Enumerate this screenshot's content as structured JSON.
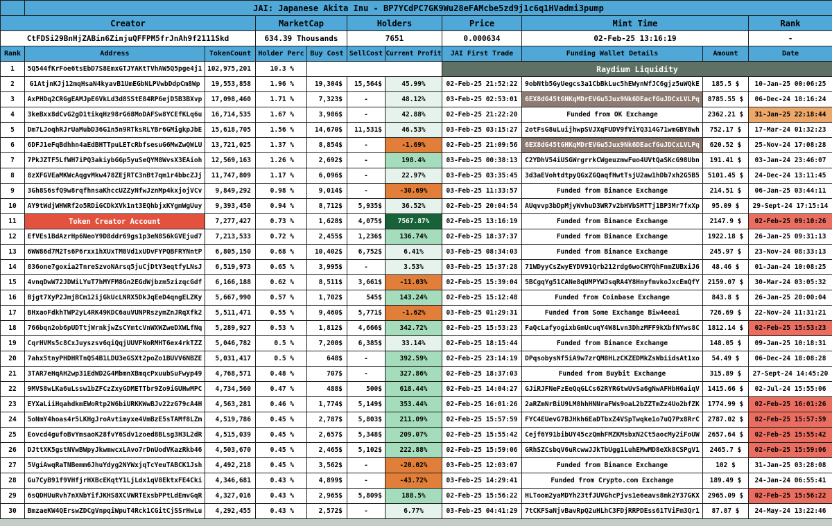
{
  "title": "JAI: Japanese Akita Inu - BP7YCdPC7GK9Wu28eFAMcbe5zd9j1c6q1HVadmi3pump",
  "summary": {
    "headers": [
      "Creator",
      "MarketCap",
      "Holders",
      "Price",
      "Mint Time",
      "Rank"
    ],
    "values": [
      "CtFDSi29BnHjZABin6ZinjuQFFPM5frJnAh9f2111Skd",
      "634.39 Thousands",
      "7651",
      "0.000634",
      "02-Feb-25 13:16:19",
      "-"
    ]
  },
  "columns": [
    "Rank",
    "Address",
    "TokenCount",
    "Holder Perc",
    "Buy Cost",
    "SellCost",
    "Current Profit",
    "JAI First Trade",
    "Funding Wallet Details",
    "Amount",
    "Date"
  ],
  "colors": {
    "header_blue": "#4FA8D7",
    "raydium_dark_cell": "#5F7065",
    "creator_red_cell": "#E2523F",
    "funding_wallet_brown": "#8D7B72",
    "profit_negative_orange": "#E07E3A",
    "profit_light_green": "#E6F3EC",
    "profit_mid_green": "#A5DCBB",
    "profit_dark_green": "#176239",
    "date_red": "#EA6E60",
    "date_orange": "#ECA76A"
  },
  "rows": [
    {
      "rank": "1",
      "address": "5Q544fKrFoe6tsEbD7S8EmxGTJYAKtTVhAW5Q5pge4j1",
      "tokens": "102,975,201",
      "perc": "10.3 %",
      "raydium": true,
      "funding": "Raydium Liquidity"
    },
    {
      "rank": "2",
      "address": "G1AtjnKJj12mqHsaN4kyavB1UmEGbNLPVwbDdpCm8Wp",
      "tokens": "19,553,858",
      "perc": "1.96 %",
      "buy": "19,304$",
      "sell": "15,564$",
      "profit": "45.99%",
      "trade": "02-Feb-25 21:52:22",
      "funding": "9obNtb5GyUegcs3a1CbBkLuc5hEWynWfJC6gjz5uWQkE",
      "amount": "185.5 $",
      "date": "10-Jan-25 00:06:25"
    },
    {
      "rank": "3",
      "address": "AxPHDq2CRGgEAMJpE6VkLd3d8SStE84RP6ejD5B3BXvp",
      "tokens": "17,098,460",
      "perc": "1.71 %",
      "buy": "7,323$",
      "sell": "-",
      "profit": "48.12%",
      "trade": "03-Feb-25 02:53:01",
      "funding": "6EX8dG45tGHKqMDrEVGu5Jux9Nk6DEacfGuJDCxLVLPq",
      "funding_dark": true,
      "amount": "8785.55 $",
      "date": "06-Dec-24 18:16:24"
    },
    {
      "rank": "4",
      "address": "3keBxx8dCvG2gD1tikqHz98rG68MoDAFSw8YCEfKLq6u",
      "tokens": "16,714,535",
      "perc": "1.67 %",
      "buy": "3,986$",
      "sell": "-",
      "profit": "42.88%",
      "trade": "02-Feb-25 21:22:20",
      "funding": "Funded from OK Exchange",
      "amount": "2362.21 $",
      "date": "31-Jan-25 22:18:44",
      "date_flag": "orange"
    },
    {
      "rank": "5",
      "address": "Dm7LJoqhRJrUaMubD36G1n5n9RTksRLYBr6GMigkpJbE",
      "tokens": "15,618,705",
      "perc": "1.56 %",
      "buy": "14,670$",
      "sell": "11,531$",
      "profit": "46.53%",
      "trade": "03-Feb-25 03:15:27",
      "funding": "2otFsG8uLuijhwpSVJXqFUDV9fViYQ314G71wmGBY8wh",
      "amount": "752.17 $",
      "date": "17-Mar-24 01:32:23"
    },
    {
      "rank": "6",
      "address": "6DFJ1eFqBdhhn4aEdBHTTpuLETcRbfsesuG6MwZwQWLU",
      "tokens": "13,721,025",
      "perc": "1.37 %",
      "buy": "8,854$",
      "sell": "-",
      "profit": "-1.69%",
      "trade": "02-Feb-25 21:09:56",
      "funding": "6EX8dG45tGHKqMDrEVGu5Jux9Nk6DEacfGuJDCxLVLPq",
      "funding_dark": true,
      "amount": "620.52 $",
      "date": "25-Nov-24 17:08:28"
    },
    {
      "rank": "7",
      "address": "7PkJZTF5LfWH7iPQ3akiybGGp5yuSeQYM8WvsX3EAioh",
      "tokens": "12,569,163",
      "perc": "1.26 %",
      "buy": "2,692$",
      "sell": "-",
      "profit": "198.4%",
      "trade": "03-Feb-25 00:38:13",
      "funding": "C2YDhV54iUSGWrgrrkCWgeuzmwFuo4UVtQaSKcG98Ubn",
      "amount": "191.41 $",
      "date": "03-Jan-24 23:46:07"
    },
    {
      "rank": "8",
      "address": "8zXFGVEaMKWcAqgvMkw478ZEjRTC3nBt7qm1r4bbcZJj",
      "tokens": "11,747,809",
      "perc": "1.17 %",
      "buy": "6,096$",
      "sell": "-",
      "profit": "22.97%",
      "trade": "03-Feb-25 03:35:45",
      "funding": "3d3aEVohtdtpyQGxZGQaqfHwtTsjU2aw1hDb7xh2G5B5",
      "amount": "5101.45 $",
      "date": "24-Dec-24 13:11:45"
    },
    {
      "rank": "9",
      "address": "3Gh8S6sfQ9w8rqfhnsaKhccUZZyNfwJznMp4kxjojVCv",
      "tokens": "9,849,292",
      "perc": "0.98 %",
      "buy": "9,014$",
      "sell": "-",
      "profit": "-30.69%",
      "trade": "03-Feb-25 11:33:57",
      "funding": "Funded from Binance Exchange",
      "amount": "214.51 $",
      "date": "06-Jan-25 03:44:11"
    },
    {
      "rank": "10",
      "address": "AY9tWdjWHWRf2o5RDiGCDkXVk1nt3EQhbjxKYgmWgUuy",
      "tokens": "9,393,450",
      "perc": "0.94 %",
      "buy": "8,712$",
      "sell": "5,935$",
      "profit": "36.52%",
      "trade": "02-Feb-25 20:04:54",
      "funding": "AUqvvp3bDpMjyWvhuD3WR7v2bHVbSMTTj1BP3Mr7fxXp",
      "amount": "95.09 $",
      "date": "29-Sept-24 17:15:14"
    },
    {
      "rank": "11",
      "address": "Token Creator Account",
      "creator": true,
      "tokens": "7,277,427",
      "perc": "0.73 %",
      "buy": "1,628$",
      "sell": "4,075$",
      "profit": "7567.87%",
      "trade": "02-Feb-25 13:16:19",
      "funding": "Funded from Binance Exchange",
      "amount": "2147.9 $",
      "date": "02-Feb-25 09:10:26",
      "date_flag": "red"
    },
    {
      "rank": "12",
      "address": "EfVEs1BdAzrHp6NeoY9D8ddr69gs1p3eN8S6kGVEjud7",
      "tokens": "7,213,533",
      "perc": "0.72 %",
      "buy": "2,455$",
      "sell": "1,236$",
      "profit": "136.74%",
      "trade": "02-Feb-25 18:37:37",
      "funding": "Funded from Binance Exchange",
      "amount": "1922.18 $",
      "date": "26-Jan-25 09:31:13"
    },
    {
      "rank": "13",
      "address": "6WW86d7M2Ts6P6rxx1hXUxTM8Vd1xUDvFYPQBFRYNntP",
      "tokens": "6,805,150",
      "perc": "0.68 %",
      "buy": "10,402$",
      "sell": "6,752$",
      "profit": "6.41%",
      "trade": "03-Feb-25 08:34:03",
      "funding": "Funded from Binance Exchange",
      "amount": "245.97 $",
      "date": "23-Nov-24 08:33:13"
    },
    {
      "rank": "14",
      "address": "836one7goxia2TnreSzvoNArsq5juCjDtY3eqtfyLNsJ",
      "tokens": "6,519,973",
      "perc": "0.65 %",
      "buy": "3,995$",
      "sell": "-",
      "profit": "3.53%",
      "trade": "03-Feb-25 15:37:28",
      "funding": "71WDyyCsZwyEYDV91Qrb212rdg6woCHYQhFnmZUBxiJ6",
      "amount": "48.46 $",
      "date": "01-Jan-24 10:08:25"
    },
    {
      "rank": "15",
      "address": "4vnqDwW72JDWiLYuT7hMYFM8Gn2EGdWjbzm5zizqcGdf",
      "tokens": "6,166,188",
      "perc": "0.62 %",
      "buy": "8,511$",
      "sell": "3,661$",
      "profit": "-11.03%",
      "trade": "02-Feb-25 15:39:04",
      "funding": "5BCgqYg51CANe8qUMPYWJsqRA4Y8HnyfmvkoJxcEmQfY",
      "amount": "2159.07 $",
      "date": "30-Mar-24 03:05:32"
    },
    {
      "rank": "16",
      "address": "Bjgt7XyP2JmjBCm12ijGkUcLNRX5DkJqEeD4qngELZKy",
      "tokens": "5,667,990",
      "perc": "0.57 %",
      "buy": "1,702$",
      "sell": "545$",
      "profit": "143.24%",
      "trade": "02-Feb-25 15:12:48",
      "funding": "Funded from Coinbase Exchange",
      "amount": "843.8 $",
      "date": "26-Jan-25 20:00:04"
    },
    {
      "rank": "17",
      "address": "BHxaoFdkhTWP2yL4RK49KDC6auVUNPRszymZnJRqXfk2",
      "tokens": "5,511,471",
      "perc": "0.55 %",
      "buy": "9,460$",
      "sell": "5,771$",
      "profit": "-1.62%",
      "trade": "03-Feb-25 01:29:31",
      "funding": "Funded from Some Exchange Biw4eeai",
      "amount": "726.69 $",
      "date": "22-Nov-24 11:31:21"
    },
    {
      "rank": "18",
      "address": "766bqn2ob6pUDTtjWrnkjwZsCYmtcVnWXWZweDXWLfNq",
      "tokens": "5,289,927",
      "perc": "0.53 %",
      "buy": "1,812$",
      "sell": "4,666$",
      "profit": "342.72%",
      "trade": "02-Feb-25 15:53:23",
      "funding": "FaQcLafyogixbGmUcuqY4W8Lvn3DhzMFF9kXbfNYws8C",
      "amount": "1812.14 $",
      "date": "02-Feb-25 15:53:23",
      "date_flag": "red"
    },
    {
      "rank": "19",
      "address": "CqrHVMs5c8CxJuyszsv6qiQqjUUVFNoRMHT6ex4rkTZZ",
      "tokens": "5,046,782",
      "perc": "0.5 %",
      "buy": "7,200$",
      "sell": "6,385$",
      "profit": "33.14%",
      "trade": "02-Feb-25 18:15:44",
      "funding": "Funded from Binance Exchange",
      "amount": "148.05 $",
      "date": "09-Jan-25 10:18:31"
    },
    {
      "rank": "20",
      "address": "7ahx5tnyPHDHRTnQS4B1LDU3eGSXt2poZo1BUVV6NBZE",
      "tokens": "5,031,417",
      "perc": "0.5 %",
      "buy": "648$",
      "sell": "-",
      "profit": "392.59%",
      "trade": "02-Feb-25 23:14:19",
      "funding": "DPqsobysNf5iA9w7zrQM8HLzCKZEDMkZsWbiidsAt1xo",
      "amount": "54.49 $",
      "date": "06-Dec-24 18:08:28"
    },
    {
      "rank": "21",
      "address": "3TAR7eHqAH2wp31EdWD2G4MbmnXBmqcPxuubSuFwyp49",
      "tokens": "4,768,571",
      "perc": "0.48 %",
      "buy": "707$",
      "sell": "-",
      "profit": "327.86%",
      "trade": "02-Feb-25 18:37:03",
      "funding": "Funded from Buybit Exchange",
      "amount": "315.89 $",
      "date": "27-Sept-24 14:45:20"
    },
    {
      "rank": "22",
      "address": "9MVS8wLKa6uLssw1bZFCzZxyGDMETTbr9Zo9iGUHwMPC",
      "tokens": "4,734,560",
      "perc": "0.47 %",
      "buy": "488$",
      "sell": "500$",
      "profit": "618.44%",
      "trade": "02-Feb-25 14:04:27",
      "funding": "GJiRJFNeFzEeQqGLCs62RYRGtwUvSa6gNwAFHbH6aiqV",
      "amount": "1415.66 $",
      "date": "02-Jul-24 15:55:06"
    },
    {
      "rank": "23",
      "address": "EYXaLiiHqahdkmEWoRtp2W6biURKKWwBJv22zG79cA4H",
      "tokens": "4,563,281",
      "perc": "0.46 %",
      "buy": "1,774$",
      "sell": "5,149$",
      "profit": "353.44%",
      "trade": "02-Feb-25 16:01:26",
      "funding": "2aRZmNrBiU9LM8hhHNNraFWs9oaL2bZZTmZz4Uo2bfZK",
      "amount": "1774.99 $",
      "date": "02-Feb-25 16:01:26",
      "date_flag": "red"
    },
    {
      "rank": "24",
      "address": "5oNmY4hoas4r5LKHgJroAvtimyxe4VmBzE5sTAMf8LZm",
      "tokens": "4,519,786",
      "perc": "0.45 %",
      "buy": "2,787$",
      "sell": "5,803$",
      "profit": "211.09%",
      "trade": "02-Feb-25 15:57:59",
      "funding": "FYC4EUevG7BJHkh6EaDTbxZ4VSpTwqke1o7uQ7Px8RrC",
      "amount": "2787.02 $",
      "date": "02-Feb-25 15:57:59",
      "date_flag": "red"
    },
    {
      "rank": "25",
      "address": "Eovcd4gufoBvYmsaoK28fvY6Sdv1zoed8BLsg3H3L2dR",
      "tokens": "4,515,039",
      "perc": "0.45 %",
      "buy": "2,657$",
      "sell": "5,348$",
      "profit": "209.07%",
      "trade": "02-Feb-25 15:55:42",
      "funding": "Cejf6Y91bibUY45czQmhFMZKMsbxN2Ct5aocMy2iFoUW",
      "amount": "2657.64 $",
      "date": "02-Feb-25 15:55:42",
      "date_flag": "red"
    },
    {
      "rank": "26",
      "address": "DJttXK5gstNVwBWpyJkwmwcxLAvo7rDnUodVKazRkb46",
      "tokens": "4,503,670",
      "perc": "0.45 %",
      "buy": "2,465$",
      "sell": "5,102$",
      "profit": "222.88%",
      "trade": "02-Feb-25 15:59:06",
      "funding": "GRhSZCsbqV6uRcwwJJkTbUgg1LuhEMwMD8eXk8CSPgV1",
      "amount": "2465.7 $",
      "date": "02-Feb-25 15:59:06",
      "date_flag": "red"
    },
    {
      "rank": "27",
      "address": "5VgiAwqRaTNBemm6JhuYdyg2NYWxjqTcYeuTABCK1Jsh",
      "tokens": "4,492,218",
      "perc": "0.45 %",
      "buy": "3,562$",
      "sell": "-",
      "profit": "-20.02%",
      "trade": "03-Feb-25 12:03:07",
      "funding": "Funded from Binance Exchange",
      "amount": "102 $",
      "date": "31-Jan-25 03:28:08"
    },
    {
      "rank": "28",
      "address": "Gu7CyB91f9VHfjrHXBcEKqtY1LjLdx1qV8EktxFE4Cki",
      "tokens": "4,346,681",
      "perc": "0.43 %",
      "buy": "4,899$",
      "sell": "-",
      "profit": "-43.72%",
      "trade": "03-Feb-25 14:29:41",
      "funding": "Funded from Crypto.com Exchange",
      "amount": "189.49 $",
      "date": "24-Jan-24 06:55:41"
    },
    {
      "rank": "29",
      "address": "6sQDHUuRvh7nXNbYifJKHS8XCVWRTExsbPPtLdEmvGqR",
      "tokens": "4,327,016",
      "perc": "0.43 %",
      "buy": "2,965$",
      "sell": "5,809$",
      "profit": "188.5%",
      "trade": "02-Feb-25 15:56:22",
      "funding": "HLToom2yaMDYh23tfJUVGhcPjvs1e6eavs8mk2Y37GKX",
      "amount": "2965.09 $",
      "date": "02-Feb-25 15:56:22",
      "date_flag": "red"
    },
    {
      "rank": "30",
      "address": "BmzaeKW4QErswZDCgVnpqiWpuT4Rck1CGitCjSSrHwLu",
      "tokens": "4,292,455",
      "perc": "0.43 %",
      "buy": "2,572$",
      "sell": "-",
      "profit": "6.77%",
      "trade": "03-Feb-25 04:41:29",
      "funding": "7tCKFSaNjvBavRpQ2uHLhC3FDjRRPDEss61TViFm3Qr1",
      "amount": "87.87 $",
      "date": "24-May-24 13:22:46"
    }
  ]
}
